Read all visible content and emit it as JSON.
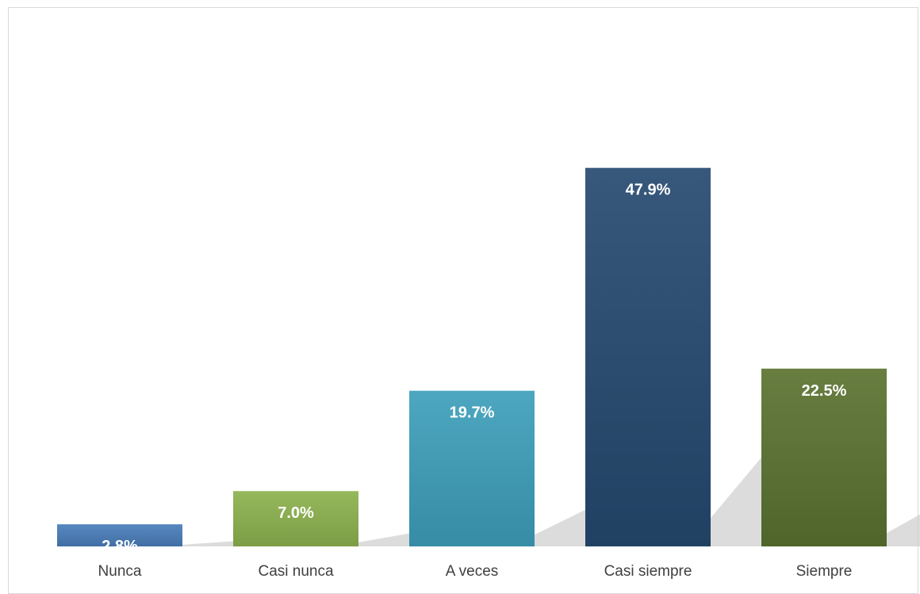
{
  "chart_data": {
    "type": "bar",
    "categories": [
      "Nunca",
      "Casi nunca",
      "A veces",
      "Casi siempre",
      "Siempre"
    ],
    "values": [
      2.8,
      7.0,
      19.7,
      47.9,
      22.5
    ],
    "value_labels": [
      "2.8%",
      "7.0%",
      "19.7%",
      "47.9%",
      "22.5%"
    ],
    "value_suffix": "%",
    "colors": [
      "#4a7ebb",
      "#8db24e",
      "#3d9fba",
      "#264a70",
      "#5b7330"
    ],
    "title": "",
    "xlabel": "",
    "ylabel": "",
    "ylim": [
      0,
      57
    ],
    "grid": false,
    "legend": "none"
  }
}
